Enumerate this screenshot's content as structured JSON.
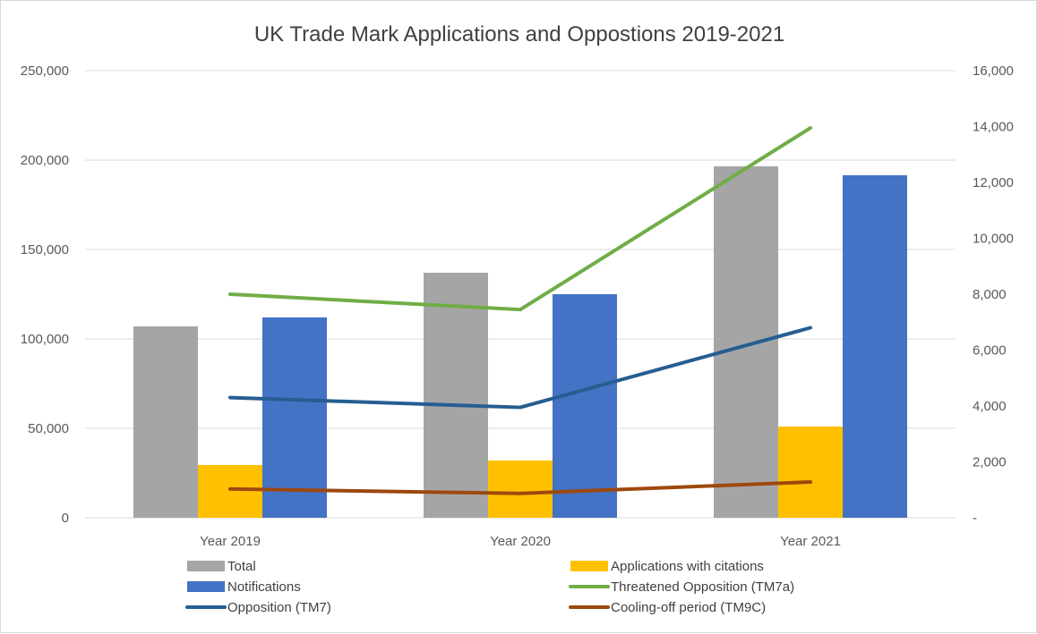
{
  "chart_data": {
    "type": "bar",
    "title": "UK Trade Mark Applications and Oppostions 2019-2021",
    "categories": [
      "Year 2019",
      "Year 2020",
      "Year 2021"
    ],
    "y_left": {
      "range": [
        0,
        250000
      ],
      "ticks": [
        0,
        50000,
        100000,
        150000,
        200000,
        250000
      ],
      "tick_labels": [
        "0",
        "50,000",
        "100,000",
        "150,000",
        "200,000",
        "250,000"
      ]
    },
    "y_right": {
      "range": [
        0,
        16000
      ],
      "ticks": [
        0,
        2000,
        4000,
        6000,
        8000,
        10000,
        12000,
        14000,
        16000
      ],
      "tick_labels": [
        "-",
        "2,000",
        "4,000",
        "6,000",
        "8,000",
        "10,000",
        "12,000",
        "14,000",
        "16,000"
      ]
    },
    "grid": true,
    "legend_position": "bottom",
    "series": [
      {
        "name": "Total",
        "type": "bar",
        "axis": "left",
        "color": "#a5a5a5",
        "values": [
          107000,
          137000,
          196500
        ]
      },
      {
        "name": "Applications with citations",
        "type": "bar",
        "axis": "left",
        "color": "#ffc000",
        "values": [
          29500,
          32000,
          51000
        ]
      },
      {
        "name": "Notifications",
        "type": "bar",
        "axis": "left",
        "color": "#4472c4",
        "values": [
          112000,
          125000,
          191500
        ]
      },
      {
        "name": "Threatened Opposition (TM7a)",
        "type": "line",
        "axis": "right",
        "color": "#70ad47",
        "values": [
          8000,
          7450,
          13950
        ]
      },
      {
        "name": "Opposition (TM7)",
        "type": "line",
        "axis": "right",
        "color": "#255e91",
        "values": [
          4300,
          3950,
          6800
        ]
      },
      {
        "name": "Cooling-off period (TM9C)",
        "type": "line",
        "axis": "right",
        "color": "#9e480e",
        "values": [
          1030,
          870,
          1280
        ]
      }
    ]
  }
}
